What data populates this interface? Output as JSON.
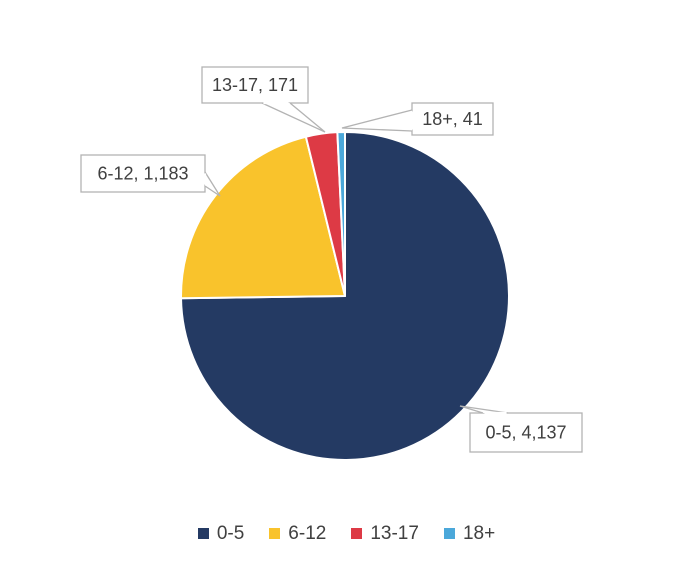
{
  "figure": {
    "background": "#FFFFFF"
  },
  "chart_data": {
    "type": "pie",
    "title": "",
    "categories": [
      "0-5",
      "6-12",
      "13-17",
      "18+"
    ],
    "values": [
      4137,
      1183,
      171,
      41
    ],
    "slices": [
      {
        "label": "0-5",
        "value": 4137,
        "display": "0-5, 4,137",
        "color": "#243A63"
      },
      {
        "label": "6-12",
        "value": 1183,
        "display": "6-12, 1,183",
        "color": "#F9C32C"
      },
      {
        "label": "13-17",
        "value": 171,
        "display": "13-17, 171",
        "color": "#DD3A45"
      },
      {
        "label": "18+",
        "value": 41,
        "display": "18+, 41",
        "color": "#4BA8DA"
      }
    ],
    "start_angle_deg": 0,
    "direction": "clockwise",
    "legend_position": "bottom",
    "slice_border_color": "#FFFFFF",
    "callout_style": {
      "fill": "#FFFFFF",
      "border_color": "#B3B3B3",
      "text_color": "#404040"
    },
    "legend_text_color": "#404040"
  }
}
